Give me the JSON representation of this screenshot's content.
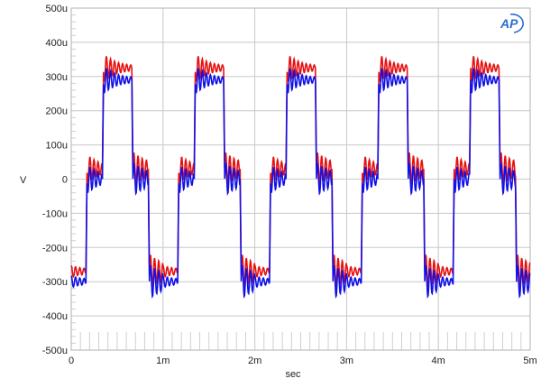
{
  "chart_data": {
    "type": "line",
    "title": "",
    "xlabel": "sec",
    "ylabel": "V",
    "xlim": [
      0,
      0.005
    ],
    "ylim": [
      -0.0005,
      0.0005
    ],
    "x_ticks": [
      "0",
      "1m",
      "2m",
      "3m",
      "4m",
      "5m"
    ],
    "y_ticks": [
      "500u",
      "400u",
      "300u",
      "200u",
      "100u",
      "0",
      "-100u",
      "-200u",
      "-300u",
      "-400u",
      "-500u"
    ],
    "grid": true,
    "legend": "none",
    "period_s": 0.001,
    "description": "Stepped quasi-square waveform, 1 kHz, with Gibbs ringing on each level",
    "series": [
      {
        "name": "red",
        "color": "#e81010",
        "levels_uV": {
          "low": -270,
          "mid_low": 30,
          "high": 325,
          "mid_high": 30
        },
        "segments_ms": [
          [
            0,
            0.16,
            "low"
          ],
          [
            0.16,
            0.34,
            "mid_low"
          ],
          [
            0.34,
            0.66,
            "high"
          ],
          [
            0.66,
            0.84,
            "mid_high"
          ],
          [
            0.84,
            1.0,
            "low"
          ]
        ]
      },
      {
        "name": "blue",
        "color": "#1010e8",
        "levels_uV": {
          "low": -300,
          "mid_low": 0,
          "high": 290,
          "mid_high": 0
        },
        "segments_ms": [
          [
            0,
            0.16,
            "low"
          ],
          [
            0.16,
            0.34,
            "mid_low"
          ],
          [
            0.34,
            0.66,
            "high"
          ],
          [
            0.66,
            0.84,
            "mid_high"
          ],
          [
            0.84,
            1.0,
            "low"
          ]
        ]
      }
    ]
  },
  "logo": {
    "text": "AP"
  },
  "colors": {
    "grid": "#c8c8c8",
    "frame": "#b0b0b0"
  }
}
